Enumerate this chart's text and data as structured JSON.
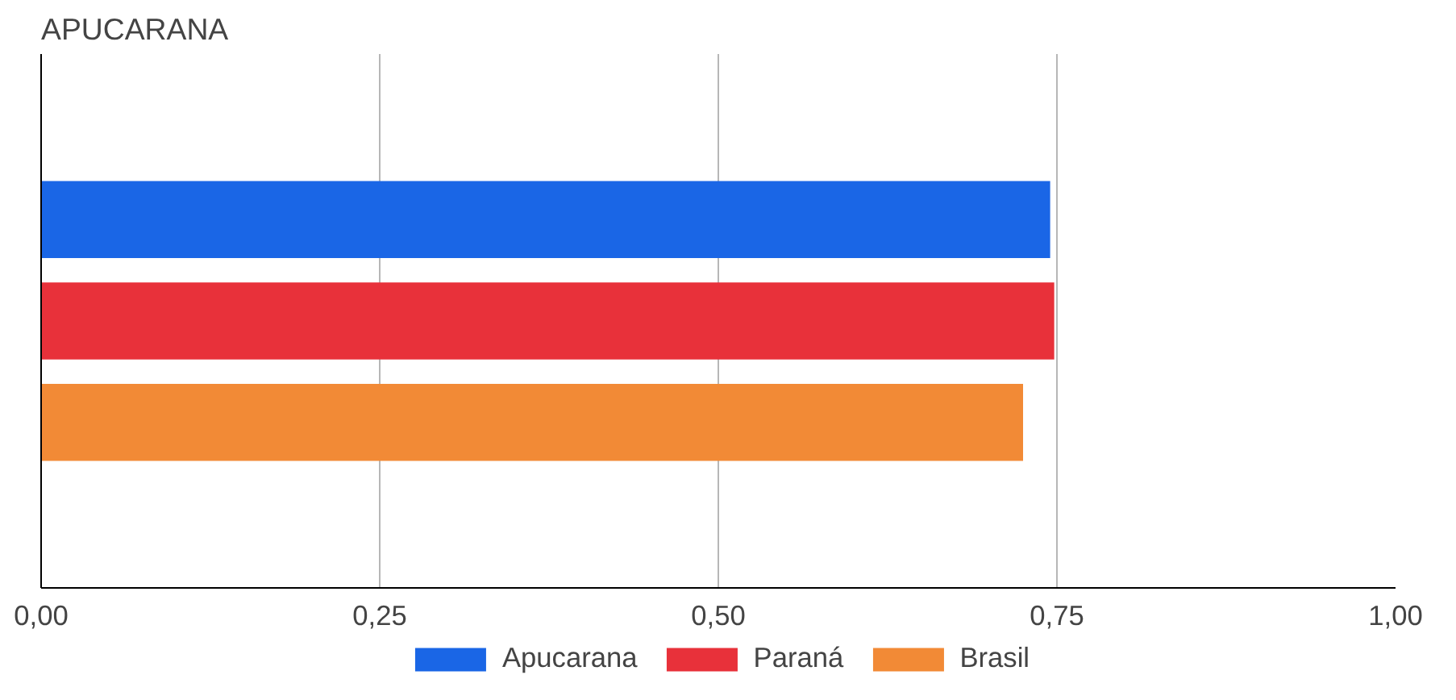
{
  "chart_data": {
    "type": "bar",
    "orientation": "horizontal",
    "title": "APUCARANA",
    "categories": [
      null
    ],
    "series": [
      {
        "name": "Apucarana",
        "color": "#1a66e6",
        "values": [
          0.745
        ]
      },
      {
        "name": "Paraná",
        "color": "#e8313a",
        "values": [
          0.748
        ]
      },
      {
        "name": "Brasil",
        "color": "#f28a36",
        "values": [
          0.725
        ]
      }
    ],
    "xlim": [
      0,
      1
    ],
    "xticks": [
      {
        "value": 0,
        "label": "0,00"
      },
      {
        "value": 0.25,
        "label": "0,25"
      },
      {
        "value": 0.5,
        "label": "0,50"
      },
      {
        "value": 0.75,
        "label": "0,75"
      },
      {
        "value": 1,
        "label": "1,00"
      }
    ],
    "grid": "x",
    "legend": "bottom"
  }
}
